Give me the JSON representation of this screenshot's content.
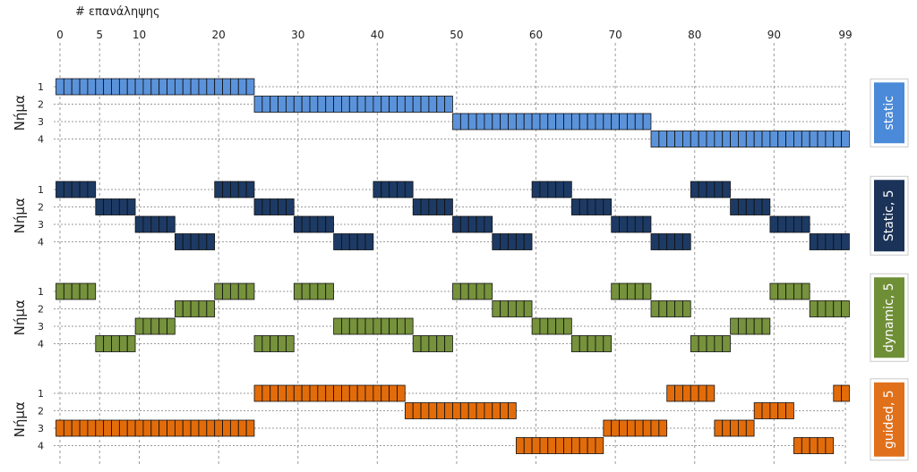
{
  "chart_data": {
    "type": "gantt",
    "xlabel": "# επανάληψης",
    "x_ticks": [
      0,
      5,
      10,
      20,
      30,
      40,
      50,
      60,
      70,
      80,
      90,
      99
    ],
    "xlim": [
      0,
      99
    ],
    "ylabel": "Νήμα",
    "threads": [
      1,
      2,
      3,
      4
    ],
    "grid": true,
    "legend_placement": "right",
    "panels": [
      {
        "name": "static",
        "color": "#5b93db",
        "badge_color": "#4a8ad8",
        "segments": [
          {
            "thread": 1,
            "start": 0,
            "end": 24
          },
          {
            "thread": 2,
            "start": 25,
            "end": 49
          },
          {
            "thread": 3,
            "start": 50,
            "end": 74
          },
          {
            "thread": 4,
            "start": 75,
            "end": 99
          }
        ]
      },
      {
        "name": "Static, 5",
        "color": "#1d3a64",
        "badge_color": "#1b3358",
        "segments": [
          {
            "thread": 1,
            "start": 0,
            "end": 4
          },
          {
            "thread": 2,
            "start": 5,
            "end": 9
          },
          {
            "thread": 3,
            "start": 10,
            "end": 14
          },
          {
            "thread": 4,
            "start": 15,
            "end": 19
          },
          {
            "thread": 1,
            "start": 20,
            "end": 24
          },
          {
            "thread": 2,
            "start": 25,
            "end": 29
          },
          {
            "thread": 3,
            "start": 30,
            "end": 34
          },
          {
            "thread": 4,
            "start": 35,
            "end": 39
          },
          {
            "thread": 1,
            "start": 40,
            "end": 44
          },
          {
            "thread": 2,
            "start": 45,
            "end": 49
          },
          {
            "thread": 3,
            "start": 50,
            "end": 54
          },
          {
            "thread": 4,
            "start": 55,
            "end": 59
          },
          {
            "thread": 1,
            "start": 60,
            "end": 64
          },
          {
            "thread": 2,
            "start": 65,
            "end": 69
          },
          {
            "thread": 3,
            "start": 70,
            "end": 74
          },
          {
            "thread": 4,
            "start": 75,
            "end": 79
          },
          {
            "thread": 1,
            "start": 80,
            "end": 84
          },
          {
            "thread": 2,
            "start": 85,
            "end": 89
          },
          {
            "thread": 3,
            "start": 90,
            "end": 94
          },
          {
            "thread": 4,
            "start": 95,
            "end": 99
          }
        ]
      },
      {
        "name": "dynamic, 5",
        "color": "#76923c",
        "badge_color": "#6f8f37",
        "segments": [
          {
            "thread": 1,
            "start": 0,
            "end": 4
          },
          {
            "thread": 4,
            "start": 5,
            "end": 9
          },
          {
            "thread": 3,
            "start": 10,
            "end": 14
          },
          {
            "thread": 2,
            "start": 15,
            "end": 19
          },
          {
            "thread": 1,
            "start": 20,
            "end": 24
          },
          {
            "thread": 4,
            "start": 25,
            "end": 29
          },
          {
            "thread": 1,
            "start": 30,
            "end": 34
          },
          {
            "thread": 3,
            "start": 35,
            "end": 44
          },
          {
            "thread": 4,
            "start": 45,
            "end": 49
          },
          {
            "thread": 1,
            "start": 50,
            "end": 54
          },
          {
            "thread": 2,
            "start": 55,
            "end": 59
          },
          {
            "thread": 3,
            "start": 60,
            "end": 64
          },
          {
            "thread": 4,
            "start": 65,
            "end": 69
          },
          {
            "thread": 1,
            "start": 70,
            "end": 74
          },
          {
            "thread": 2,
            "start": 75,
            "end": 79
          },
          {
            "thread": 4,
            "start": 80,
            "end": 84
          },
          {
            "thread": 3,
            "start": 85,
            "end": 89
          },
          {
            "thread": 1,
            "start": 90,
            "end": 94
          },
          {
            "thread": 2,
            "start": 95,
            "end": 99
          }
        ]
      },
      {
        "name": "guided, 5",
        "color": "#e36c0a",
        "badge_color": "#e0701a",
        "segments": [
          {
            "thread": 3,
            "start": 0,
            "end": 24
          },
          {
            "thread": 1,
            "start": 25,
            "end": 43
          },
          {
            "thread": 2,
            "start": 44,
            "end": 57
          },
          {
            "thread": 4,
            "start": 58,
            "end": 68
          },
          {
            "thread": 3,
            "start": 69,
            "end": 76
          },
          {
            "thread": 1,
            "start": 77,
            "end": 82
          },
          {
            "thread": 3,
            "start": 83,
            "end": 87
          },
          {
            "thread": 2,
            "start": 88,
            "end": 92
          },
          {
            "thread": 4,
            "start": 93,
            "end": 97
          },
          {
            "thread": 1,
            "start": 98,
            "end": 99
          }
        ]
      }
    ]
  }
}
